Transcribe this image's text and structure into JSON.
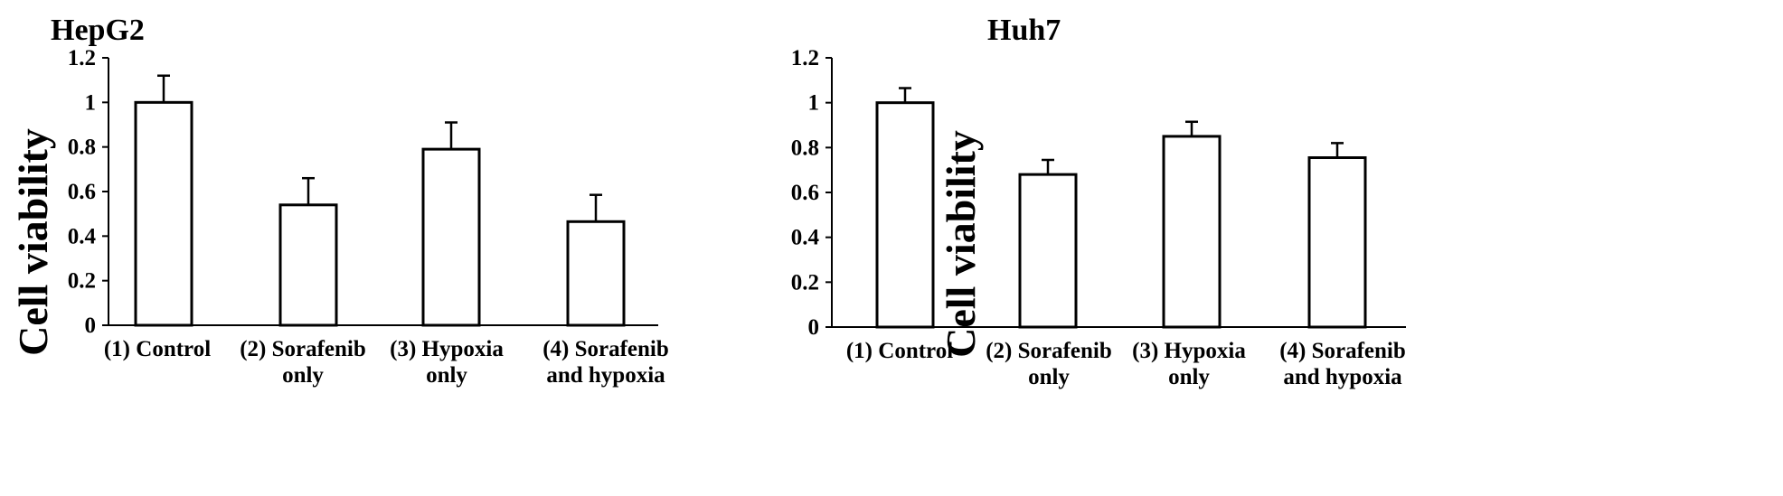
{
  "chart_data": [
    {
      "type": "bar",
      "title": "HepG2",
      "ylabel": "Cell viability",
      "xlabel": "",
      "ylim": [
        0,
        1.2
      ],
      "yticks": [
        "0",
        "0.2",
        "0.4",
        "0.6",
        "0.8",
        "1",
        "1.2"
      ],
      "categories": [
        [
          "(1) Control"
        ],
        [
          "(2) Sorafenib",
          "only"
        ],
        [
          "(3) Hypoxia",
          "only"
        ],
        [
          "(4) Sorafenib",
          "and hypoxia"
        ]
      ],
      "values": [
        1.0,
        0.54,
        0.79,
        0.465
      ],
      "errors": [
        0.12,
        0.12,
        0.12,
        0.12
      ],
      "bar_fill": "#ffffff",
      "bar_stroke": "#000000"
    },
    {
      "type": "bar",
      "title": "Huh7",
      "ylabel": "Cell viability",
      "xlabel": "",
      "ylim": [
        0,
        1.2
      ],
      "yticks": [
        "0",
        "0.2",
        "0.4",
        "0.6",
        "0.8",
        "1",
        "1.2"
      ],
      "categories": [
        [
          "(1) Control"
        ],
        [
          "(2) Sorafenib",
          "only"
        ],
        [
          "(3) Hypoxia",
          "only"
        ],
        [
          "(4) Sorafenib",
          "and hypoxia"
        ]
      ],
      "values": [
        1.0,
        0.68,
        0.85,
        0.755
      ],
      "errors": [
        0.065,
        0.065,
        0.065,
        0.065
      ],
      "bar_fill": "#ffffff",
      "bar_stroke": "#000000"
    }
  ]
}
